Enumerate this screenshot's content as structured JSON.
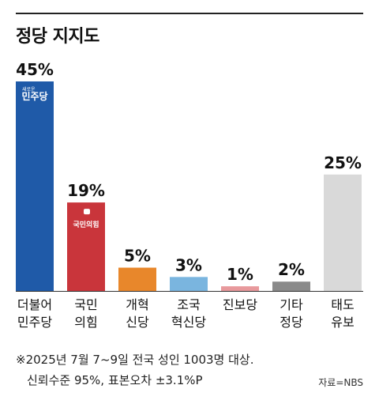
{
  "title": "정당 지지도",
  "footnote_line1": "※2025년 7월 7~9일 전국 성인 1003명 대상.",
  "footnote_line2": "신뢰수준 95%, 표본오차 ±3.1%P",
  "source": "자료=NBS",
  "chart_data": {
    "type": "bar",
    "title": "정당 지지도",
    "unit": "%",
    "categories": [
      [
        "더불어",
        "민주당"
      ],
      [
        "국민",
        "의힘"
      ],
      [
        "개혁",
        "신당"
      ],
      [
        "조국",
        "혁신당"
      ],
      [
        "진보당"
      ],
      [
        "기타",
        "정당"
      ],
      [
        "태도",
        "유보"
      ]
    ],
    "values": [
      45,
      19,
      5,
      3,
      1,
      2,
      25
    ],
    "value_labels": [
      "45%",
      "19%",
      "5%",
      "3%",
      "1%",
      "2%",
      "25%"
    ],
    "colors": [
      "#1f5aa8",
      "#c9353b",
      "#e8872b",
      "#7ab5df",
      "#e8999c",
      "#8a8a8a",
      "#d9d9d9"
    ],
    "logos": [
      {
        "index": 0,
        "small": "새로운",
        "text": "민주당"
      },
      {
        "index": 1,
        "text": "국민의힘"
      }
    ],
    "ylim": [
      0,
      45
    ],
    "grid": false
  }
}
